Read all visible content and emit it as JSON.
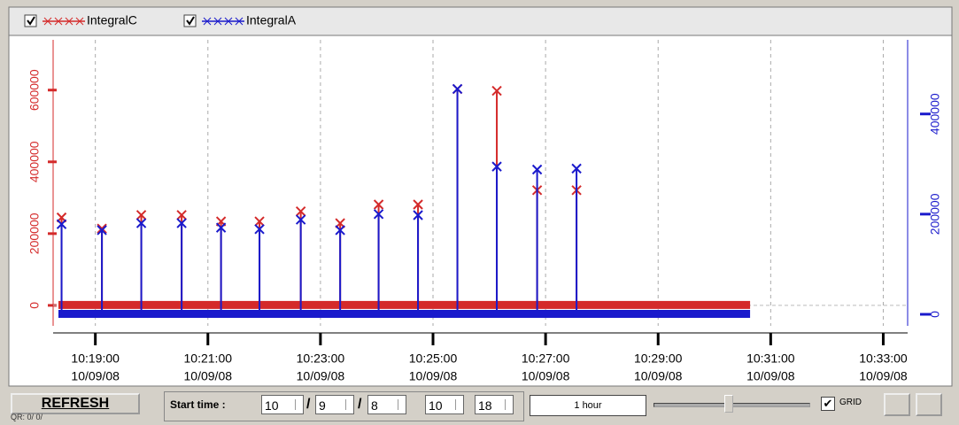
{
  "chart_data": {
    "type": "spike",
    "series": [
      {
        "name": "IntegralC",
        "color": "#d42a2a",
        "axis": "y",
        "x": [
          37104,
          37147,
          37189,
          37232,
          37274,
          37315,
          37359,
          37401,
          37442,
          37484,
          37526,
          37568,
          37611,
          37653
        ],
        "values": [
          245000,
          214000,
          252000,
          252000,
          234000,
          234000,
          262000,
          229000,
          281000,
          281000,
          603000,
          598000,
          321000,
          321000
        ]
      },
      {
        "name": "IntegralA",
        "color": "#1a1acc",
        "axis": "y2",
        "x": [
          37104,
          37147,
          37189,
          37232,
          37274,
          37315,
          37359,
          37401,
          37442,
          37484,
          37526,
          37568,
          37611,
          37653
        ],
        "values": [
          180000,
          168000,
          182000,
          182000,
          173000,
          170000,
          189000,
          168000,
          200000,
          198000,
          450000,
          295000,
          289000,
          291000
        ]
      }
    ],
    "xlim": [
      37095,
      38006
    ],
    "xticks": [
      {
        "value": 37140,
        "label": "10:19:00"
      },
      {
        "value": 37260,
        "label": "10:21:00"
      },
      {
        "value": 37380,
        "label": "10:23:00"
      },
      {
        "value": 37500,
        "label": "10:25:00"
      },
      {
        "value": 37620,
        "label": "10:27:00"
      },
      {
        "value": 37740,
        "label": "10:29:00"
      },
      {
        "value": 37860,
        "label": "10:31:00"
      },
      {
        "value": 37980,
        "label": "10:33:00"
      }
    ],
    "xtick_dates": [
      "10/09/08",
      "10/09/08",
      "10/09/08",
      "10/09/08",
      "10/09/08",
      "10/09/08",
      "10/09/08",
      "10/09/08"
    ],
    "ylim": [
      -57000,
      740000
    ],
    "yticks": [
      0,
      200000,
      400000,
      600000
    ],
    "y2lim": [
      -23000,
      548000
    ],
    "y2ticks": [
      0,
      200000,
      400000
    ],
    "grid": true
  },
  "toolbar": {
    "refresh": "REFRESH",
    "status": "QR: 0/ 0/",
    "start_label": "Start time :",
    "separator": "/",
    "fields": [
      "10",
      "9",
      "8",
      "10",
      "18"
    ],
    "range": "1 hour",
    "grid_label": "GRID"
  }
}
